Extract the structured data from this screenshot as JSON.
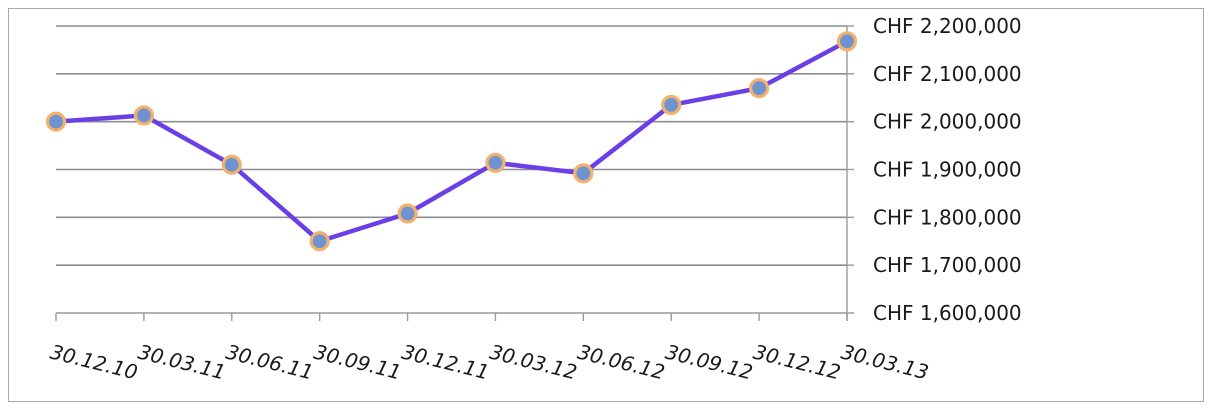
{
  "chart_data": {
    "type": "line",
    "title": "",
    "xlabel": "",
    "ylabel": "",
    "categories": [
      "30.12.10",
      "30.03.11",
      "30.06.11",
      "30.09.11",
      "30.12.11",
      "30.03.12",
      "30.06.12",
      "30.09.12",
      "30.12.12",
      "30.03.13"
    ],
    "series": [
      {
        "values": [
          2000000,
          2013000,
          1910000,
          1750000,
          1808000,
          1914000,
          1892000,
          2035000,
          2070000,
          2168000
        ]
      }
    ],
    "ylim": [
      1600000,
      2200000
    ],
    "yticks": [
      1600000,
      1700000,
      1800000,
      1900000,
      2000000,
      2100000,
      2200000
    ],
    "ytick_labels": [
      "CHF 1,600,000",
      "CHF 1,700,000",
      "CHF 1,800,000",
      "CHF 1,900,000",
      "CHF 2,000,000",
      "CHF 2,100,000",
      "CHF 2,200,000"
    ],
    "y_axis_position": "right",
    "grid": true,
    "legend": "none",
    "colors": {
      "line": "#6a3fe6",
      "marker_fill": "#6f93cf",
      "marker_stroke": "#f2b26e",
      "grid": "#8c8c8c",
      "axis": "#9a9a9a"
    }
  }
}
